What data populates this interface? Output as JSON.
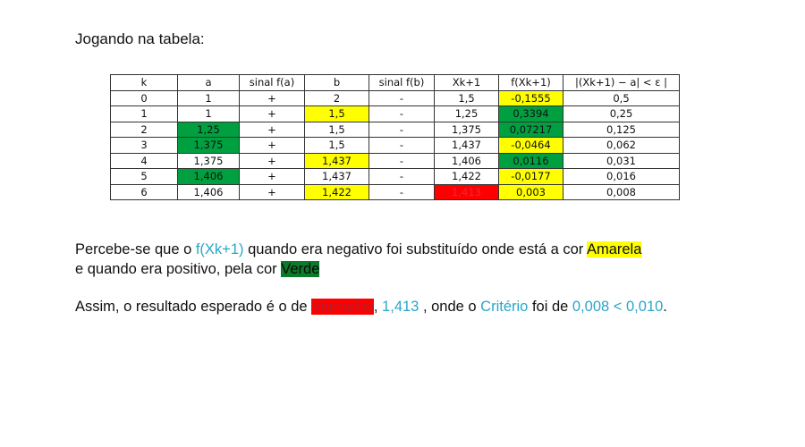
{
  "heading": "Jogando na tabela:",
  "colors": {
    "yellow": "#ffff00",
    "green": "#00a040",
    "red": "#ff0000",
    "cyan": "#2aa6c8"
  },
  "table": {
    "headers": [
      "k",
      "a",
      "sinal f(a)",
      "b",
      "sinal f(b)",
      "Xk+1",
      "f(Xk+1)",
      "|(Xk+1) − a| < ε |"
    ],
    "rows": [
      [
        "0",
        "1",
        "+",
        "2",
        "-",
        "1,5",
        "-0,1555",
        "0,5"
      ],
      [
        "1",
        "1",
        "+",
        "1,5",
        "-",
        "1,25",
        "0,3394",
        "0,25"
      ],
      [
        "2",
        "1,25",
        "+",
        "1,5",
        "-",
        "1,375",
        "0,07217",
        "0,125"
      ],
      [
        "3",
        "1,375",
        "+",
        "1,5",
        "-",
        "1,437",
        "-0,0464",
        "0,062"
      ],
      [
        "4",
        "1,375",
        "+",
        "1,437",
        "-",
        "1,406",
        "0,0116",
        "0,031"
      ],
      [
        "5",
        "1,406",
        "+",
        "1,437",
        "-",
        "1,422",
        "-0,0177",
        "0,016"
      ],
      [
        "6",
        "1,406",
        "+",
        "1,422",
        "-",
        "1,413",
        "0,003",
        "0,008"
      ]
    ]
  },
  "paragraph1": {
    "a": "Percebe-se que o ",
    "fx": "f(Xk+1)",
    "b": " quando era negativo foi substituído onde está a cor ",
    "amarela": "Amarela",
    "c": "e quando era positivo, pela cor ",
    "verde": "Verde"
  },
  "paragraph2": {
    "a": "Assim, o resultado esperado é o de ",
    "vermelho": "Vermelho",
    "comma": ",",
    "value": " 1,413 ",
    "b": ", onde o ",
    "criterio": "Critério",
    "c": " foi de ",
    "cmp": "0,008 < 0,010",
    "end": "."
  }
}
